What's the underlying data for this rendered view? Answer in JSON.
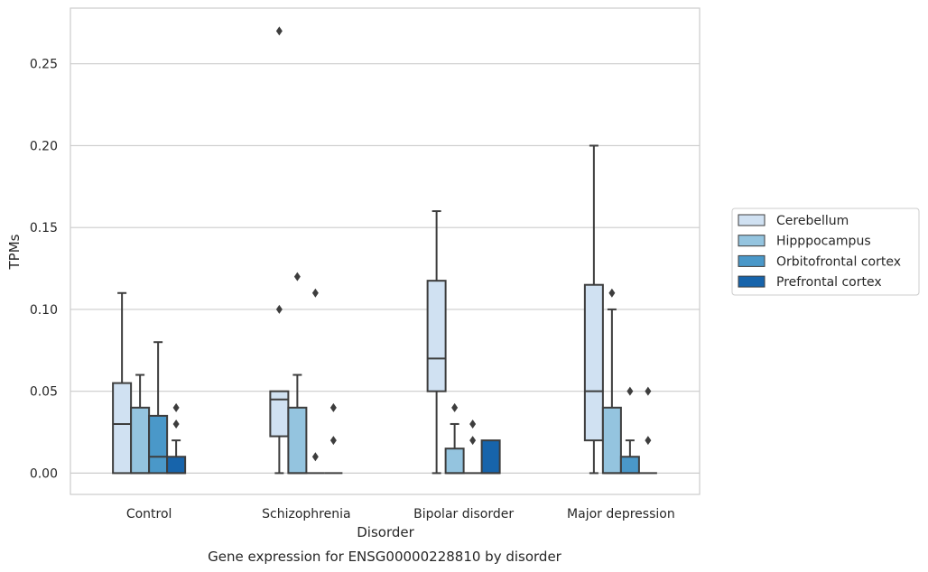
{
  "chart_data": {
    "type": "box",
    "xlabel": "Disorder",
    "ylabel": "TPMs",
    "caption": "Gene expression for ENSG00000228810 by disorder",
    "categories": [
      "Control",
      "Schizophrenia",
      "Bipolar disorder",
      "Major depression"
    ],
    "ylim": [
      -0.013,
      0.284
    ],
    "yticks": [
      0.0,
      0.05,
      0.1,
      0.15,
      0.2,
      0.25
    ],
    "ytick_labels": [
      "0.00",
      "0.05",
      "0.10",
      "0.15",
      "0.20",
      "0.25"
    ],
    "grid": true,
    "legend_position": "right",
    "series": [
      {
        "name": "Cerebellum",
        "color": "#d0e1f2",
        "boxes": [
          {
            "min": 0.0,
            "q1": 0.0,
            "median": 0.03,
            "q3": 0.055,
            "max": 0.11,
            "outliers": []
          },
          {
            "min": 0.0,
            "q1": 0.0225,
            "median": 0.045,
            "q3": 0.05,
            "max": 0.05,
            "outliers": [
              0.1,
              0.27
            ]
          },
          {
            "min": 0.0,
            "q1": 0.05,
            "median": 0.07,
            "q3": 0.1175,
            "max": 0.16,
            "outliers": []
          },
          {
            "min": 0.0,
            "q1": 0.02,
            "median": 0.05,
            "q3": 0.115,
            "max": 0.2,
            "outliers": []
          }
        ]
      },
      {
        "name": "Hipppocampus",
        "color": "#94c4df",
        "boxes": [
          {
            "min": 0.0,
            "q1": 0.0,
            "median": 0.0,
            "q3": 0.04,
            "max": 0.06,
            "outliers": []
          },
          {
            "min": 0.0,
            "q1": 0.0,
            "median": 0.0,
            "q3": 0.04,
            "max": 0.06,
            "outliers": [
              0.12
            ]
          },
          {
            "min": 0.0,
            "q1": 0.0,
            "median": 0.0,
            "q3": 0.015,
            "max": 0.03,
            "outliers": [
              0.04
            ]
          },
          {
            "min": 0.0,
            "q1": 0.0,
            "median": 0.0,
            "q3": 0.04,
            "max": 0.1,
            "outliers": [
              0.11
            ]
          }
        ]
      },
      {
        "name": "Orbitofrontal cortex",
        "color": "#4a98c9",
        "boxes": [
          {
            "min": 0.0,
            "q1": 0.0,
            "median": 0.01,
            "q3": 0.035,
            "max": 0.08,
            "outliers": []
          },
          {
            "min": 0.0,
            "q1": 0.0,
            "median": 0.0,
            "q3": 0.0,
            "max": 0.0,
            "outliers": [
              0.01,
              0.11
            ]
          },
          {
            "min": 0.0,
            "q1": 0.0,
            "median": 0.0,
            "q3": 0.0,
            "max": 0.0,
            "outliers": [
              0.02,
              0.03
            ]
          },
          {
            "min": 0.0,
            "q1": 0.0,
            "median": 0.0,
            "q3": 0.01,
            "max": 0.02,
            "outliers": [
              0.05
            ]
          }
        ]
      },
      {
        "name": "Prefrontal cortex",
        "color": "#1764ab",
        "boxes": [
          {
            "min": 0.0,
            "q1": 0.0,
            "median": 0.0,
            "q3": 0.01,
            "max": 0.02,
            "outliers": [
              0.03,
              0.04
            ]
          },
          {
            "min": 0.0,
            "q1": 0.0,
            "median": 0.0,
            "q3": 0.0,
            "max": 0.0,
            "outliers": [
              0.02,
              0.04
            ]
          },
          {
            "min": 0.0,
            "q1": 0.0,
            "median": 0.0,
            "q3": 0.02,
            "max": 0.02,
            "outliers": []
          },
          {
            "min": 0.0,
            "q1": 0.0,
            "median": 0.0,
            "q3": 0.0,
            "max": 0.0,
            "outliers": [
              0.02,
              0.05
            ]
          }
        ]
      }
    ]
  }
}
